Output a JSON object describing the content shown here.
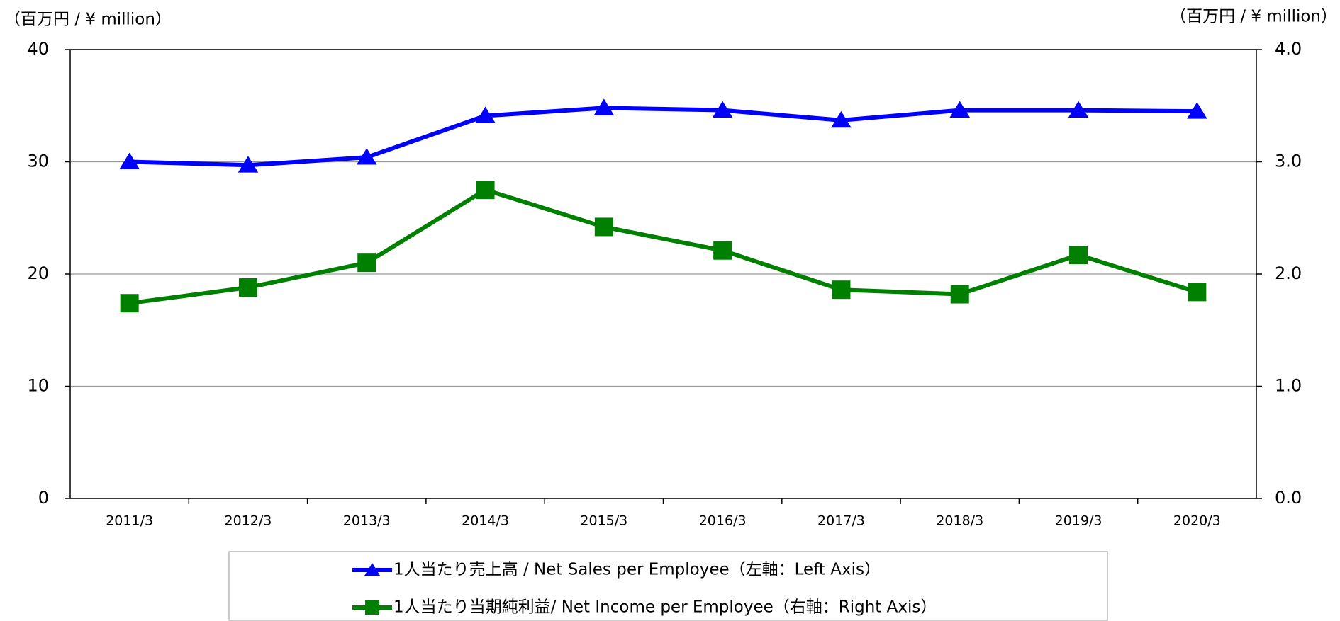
{
  "chart_data": {
    "type": "line",
    "y_unit_label": "（百万円 / ¥ million）",
    "y2_unit_label": "（百万円 / ¥ million）",
    "categories": [
      "2011/3",
      "2012/3",
      "2013/3",
      "2014/3",
      "2015/3",
      "2016/3",
      "2017/3",
      "2018/3",
      "2019/3",
      "2020/3"
    ],
    "series": [
      {
        "name": "1人当たり売上高 / Net Sales per Employee（左軸：Left Axis）",
        "color": "#0000ff",
        "marker": "triangle",
        "axis": "y",
        "values": [
          30.0,
          29.7,
          30.4,
          34.1,
          34.8,
          34.6,
          33.7,
          34.6,
          34.6,
          34.5
        ]
      },
      {
        "name": "1人当たり当期純利益/ Net Income per Employee（右軸：Right Axis）",
        "color": "#008000",
        "marker": "square",
        "axis": "y2",
        "values": [
          1.74,
          1.88,
          2.1,
          2.75,
          2.42,
          2.21,
          1.86,
          1.82,
          2.17,
          1.84
        ]
      }
    ],
    "ylim": [
      0,
      40
    ],
    "yticks": [
      0,
      10,
      20,
      30,
      40
    ],
    "y2lim": [
      0,
      4
    ],
    "y2ticks": [
      {
        "value": 0,
        "label": "0.0"
      },
      {
        "value": 1,
        "label": "1.0"
      },
      {
        "value": 2,
        "label": "2.0"
      },
      {
        "value": 3,
        "label": "3.0"
      },
      {
        "value": 4,
        "label": "4.0"
      }
    ],
    "grid": true,
    "legend": "bottom"
  }
}
